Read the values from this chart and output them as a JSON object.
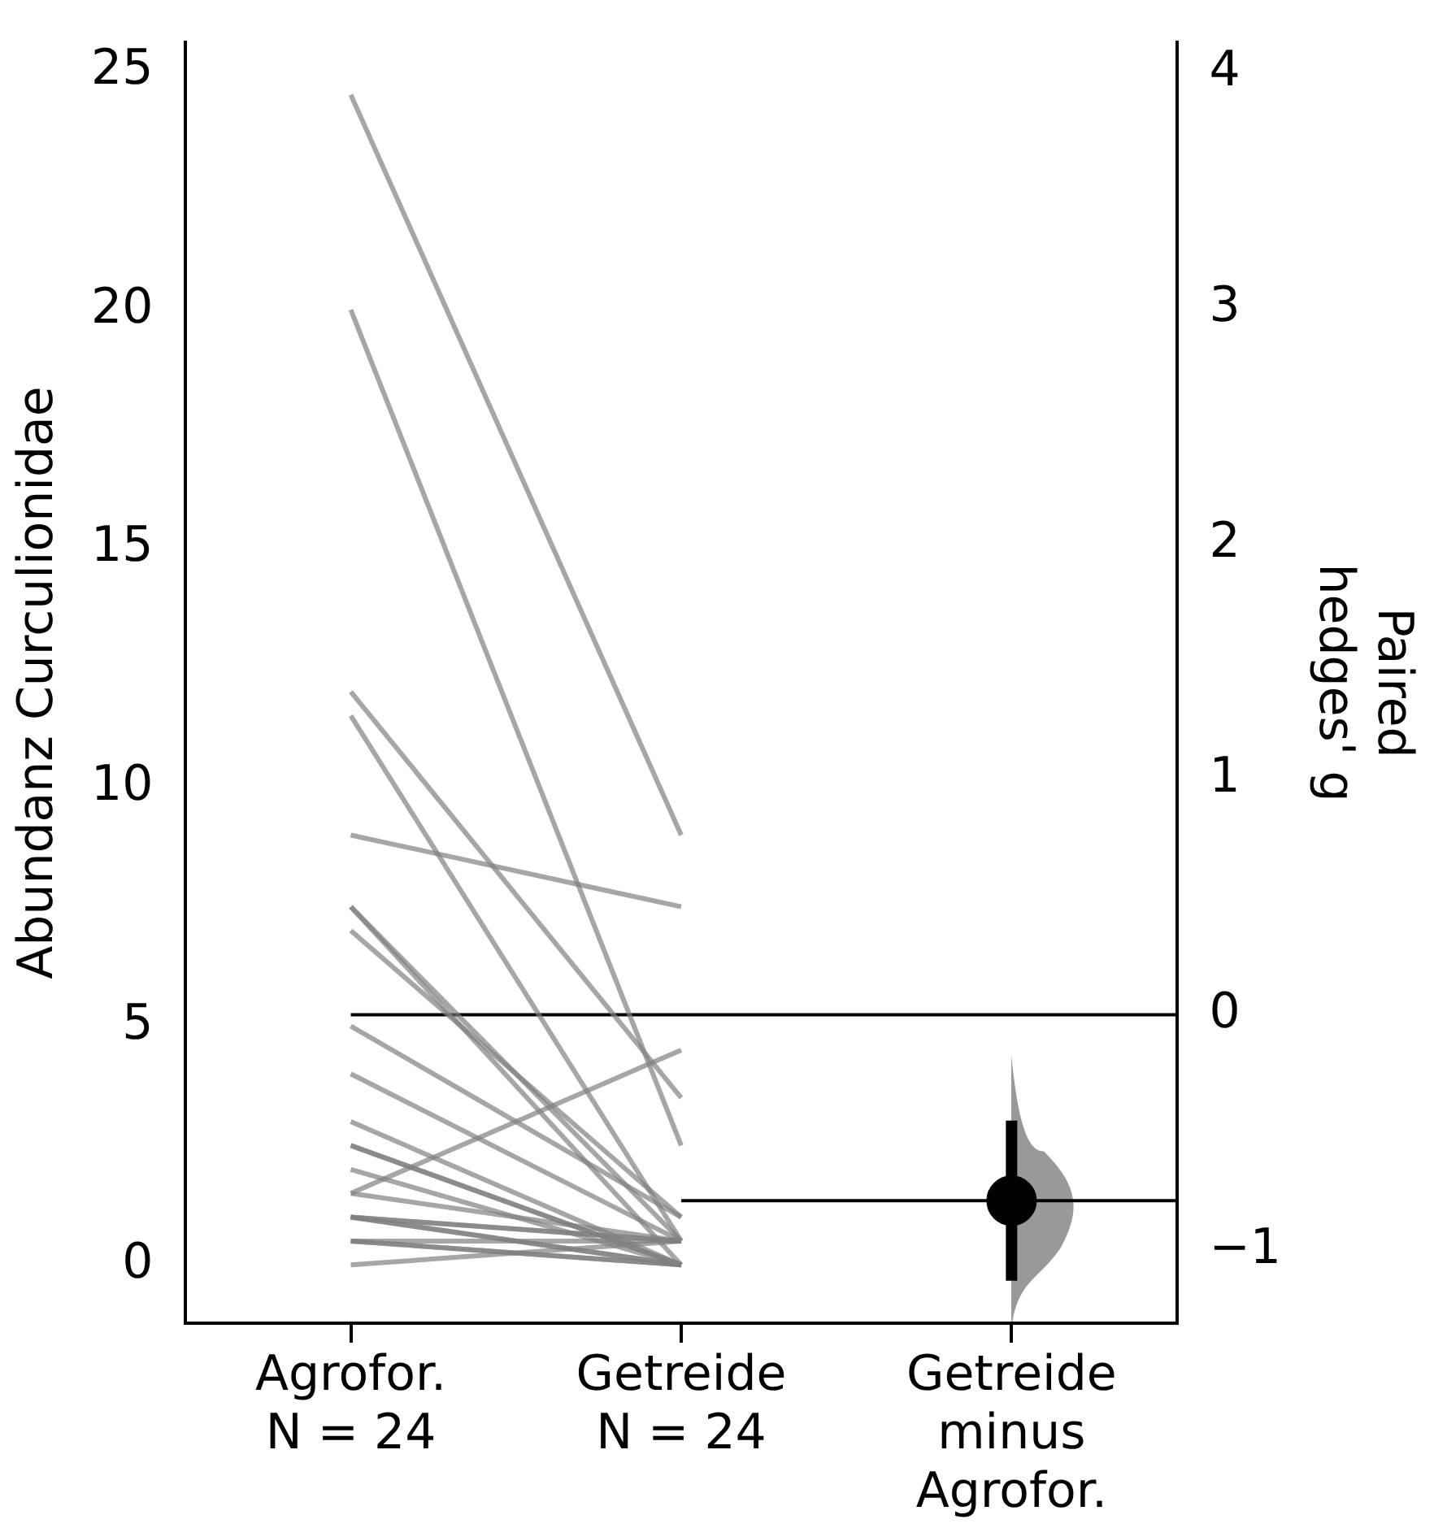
{
  "chart_data": {
    "type": "line",
    "ylabel": "Abundanz Curculionidae",
    "y2label": "Paired\nhedges' g",
    "categories": [
      "Agrofor.\nN = 24",
      "Getreide\nN = 24",
      "Getreide\nminus\nAgrofor."
    ],
    "series": [
      {
        "color": "#808080",
        "values": [
          24.5,
          9,
          null
        ]
      },
      {
        "color": "#808080",
        "values": [
          20,
          2.5,
          null
        ]
      },
      {
        "color": "#808080",
        "values": [
          12,
          3.5,
          null
        ]
      },
      {
        "color": "#808080",
        "values": [
          11.5,
          0.5,
          null
        ]
      },
      {
        "color": "#808080",
        "values": [
          9,
          7.5,
          null
        ]
      },
      {
        "color": "#808080",
        "values": [
          7.5,
          0,
          null
        ]
      },
      {
        "color": "#808080",
        "values": [
          7.5,
          0.5,
          null
        ]
      },
      {
        "color": "#808080",
        "values": [
          7,
          1,
          null
        ]
      },
      {
        "color": "#808080",
        "values": [
          5,
          1,
          null
        ]
      },
      {
        "color": "#808080",
        "values": [
          4,
          0.5,
          null
        ]
      },
      {
        "color": "#808080",
        "values": [
          3,
          0,
          null
        ]
      },
      {
        "color": "#808080",
        "values": [
          2.5,
          0,
          null
        ]
      },
      {
        "color": "#808080",
        "values": [
          2.5,
          0,
          null
        ]
      },
      {
        "color": "#808080",
        "values": [
          2,
          0,
          null
        ]
      },
      {
        "color": "#808080",
        "values": [
          1.5,
          4.5,
          null
        ]
      },
      {
        "color": "#808080",
        "values": [
          1.5,
          0.5,
          null
        ]
      },
      {
        "color": "#808080",
        "values": [
          1,
          0.5,
          null
        ]
      },
      {
        "color": "#808080",
        "values": [
          1,
          0.5,
          null
        ]
      },
      {
        "color": "#808080",
        "values": [
          1,
          0,
          null
        ]
      },
      {
        "color": "#808080",
        "values": [
          1,
          0,
          null
        ]
      },
      {
        "color": "#808080",
        "values": [
          0.5,
          0,
          null
        ]
      },
      {
        "color": "#808080",
        "values": [
          0.5,
          0,
          null
        ]
      },
      {
        "color": "#808080",
        "values": [
          0.5,
          0.5,
          null
        ]
      },
      {
        "color": "#808080",
        "values": [
          0,
          0.5,
          null
        ]
      },
      {
        "type": "scatter",
        "axis": "y2",
        "marker": "circle",
        "color": "#000000",
        "values": [
          null,
          null,
          -0.79
        ],
        "errors": [
          null,
          null,
          [
            -1.13,
            -0.45
          ]
        ]
      }
    ],
    "ylim": [
      -1.22,
      25.6
    ],
    "yticks": [
      0,
      5,
      10,
      15,
      20,
      25
    ],
    "y2lim": [
      -1.31,
      4.13
    ],
    "y2ticks": [
      {
        "value": -1,
        "label": "−1"
      },
      0,
      1,
      2,
      3,
      4
    ],
    "ref_lines": [
      {
        "axis": "y2",
        "value": 0,
        "color": "#000000"
      },
      {
        "axis": "y2",
        "value": -0.79,
        "color": "#000000"
      }
    ],
    "marker": "none",
    "grid": false,
    "legend": false
  }
}
